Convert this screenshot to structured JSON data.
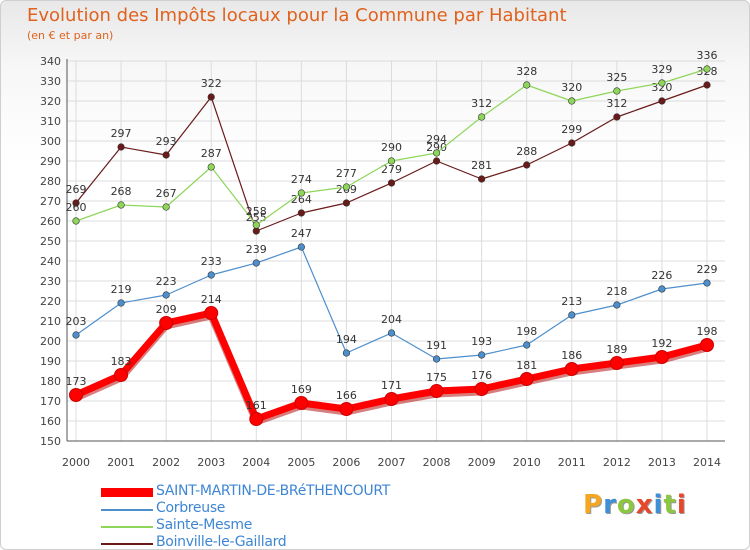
{
  "chart_data": {
    "type": "line",
    "title": "Evolution des Impôts locaux pour la Commune par Habitant",
    "subtitle": "(en € et par an)",
    "x": [
      "2000",
      "2001",
      "2002",
      "2003",
      "2004",
      "2005",
      "2006",
      "2007",
      "2008",
      "2009",
      "2010",
      "2011",
      "2012",
      "2013",
      "2014"
    ],
    "ylim": [
      150,
      340
    ],
    "yticks": [
      150,
      160,
      170,
      180,
      190,
      200,
      210,
      220,
      230,
      240,
      250,
      260,
      270,
      280,
      290,
      300,
      310,
      320,
      330,
      340
    ],
    "grid": true,
    "legend_position": "bottom-left",
    "series": [
      {
        "name": "SAINT-MARTIN-DE-BRéTHENCOURT",
        "color": "#ff0000",
        "values": [
          173,
          183,
          209,
          214,
          161,
          169,
          166,
          171,
          175,
          176,
          181,
          186,
          189,
          192,
          198
        ],
        "labels": [
          "173",
          "183",
          "209",
          "214",
          "161",
          "169",
          "166",
          "171",
          "175",
          "176",
          "181",
          "186",
          "189",
          "192",
          "198"
        ]
      },
      {
        "name": "Corbreuse",
        "color": "#4d8fcc",
        "values": [
          203,
          219,
          223,
          233,
          239,
          247,
          194,
          204,
          191,
          193,
          198,
          213,
          218,
          226,
          229
        ],
        "labels": [
          "203",
          "219",
          "223",
          "233",
          "239",
          "247",
          "194",
          "204",
          "191",
          "193",
          "198",
          "213",
          "218",
          "226",
          "229"
        ]
      },
      {
        "name": "Sainte-Mesme",
        "color": "#8ed65a",
        "values": [
          260,
          268,
          267,
          287,
          258,
          274,
          277,
          290,
          294,
          312,
          328,
          320,
          325,
          329,
          336
        ],
        "labels": [
          "260",
          "268",
          "267",
          "287",
          "258",
          "274",
          "277",
          "290",
          "294",
          "312",
          "328",
          "320",
          "325",
          "329",
          "336"
        ]
      },
      {
        "name": "Boinville-le-Gaillard",
        "color": "#6b1a1a",
        "values": [
          269,
          297,
          293,
          322,
          255,
          264,
          269,
          279,
          290,
          281,
          288,
          299,
          312,
          320,
          328
        ],
        "labels": [
          "269",
          "297",
          "293",
          "322",
          "255",
          "264",
          "269",
          "279",
          "290",
          "281",
          "288",
          "299",
          "312",
          "320",
          "328"
        ]
      }
    ]
  },
  "logo": {
    "letters": [
      "P",
      "r",
      "o",
      "x",
      "i",
      "t",
      "i"
    ],
    "colors": [
      "#f5a623",
      "#3f8fd6",
      "#8dc63f",
      "#e8462b",
      "#3f8fd6",
      "#8dc63f",
      "#e8462b"
    ]
  }
}
